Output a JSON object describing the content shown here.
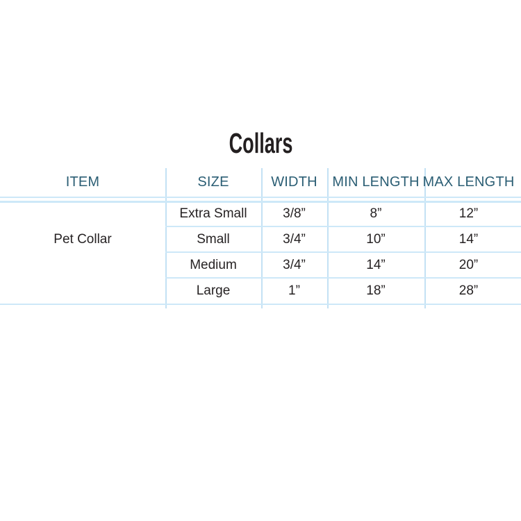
{
  "page": {
    "title": "Collars"
  },
  "table": {
    "headers": [
      "ITEM",
      "SIZE",
      "WIDTH",
      "MIN LENGTH",
      "MAX LENGTH"
    ],
    "item": "Pet Collar",
    "rows": [
      {
        "size": "Extra Small",
        "width": "3/8”",
        "min_length": "8”",
        "max_length": "12”"
      },
      {
        "size": "Small",
        "width": "3/4”",
        "min_length": "10”",
        "max_length": "14”"
      },
      {
        "size": "Medium",
        "width": "3/4”",
        "min_length": "14”",
        "max_length": "20”"
      },
      {
        "size": "Large",
        "width": "1”",
        "min_length": "18”",
        "max_length": "28”"
      }
    ]
  },
  "colors": {
    "title_text": "#231f20",
    "header_text": "#2b5e74",
    "body_text": "#262223",
    "divider_line": "#cde8f8"
  }
}
